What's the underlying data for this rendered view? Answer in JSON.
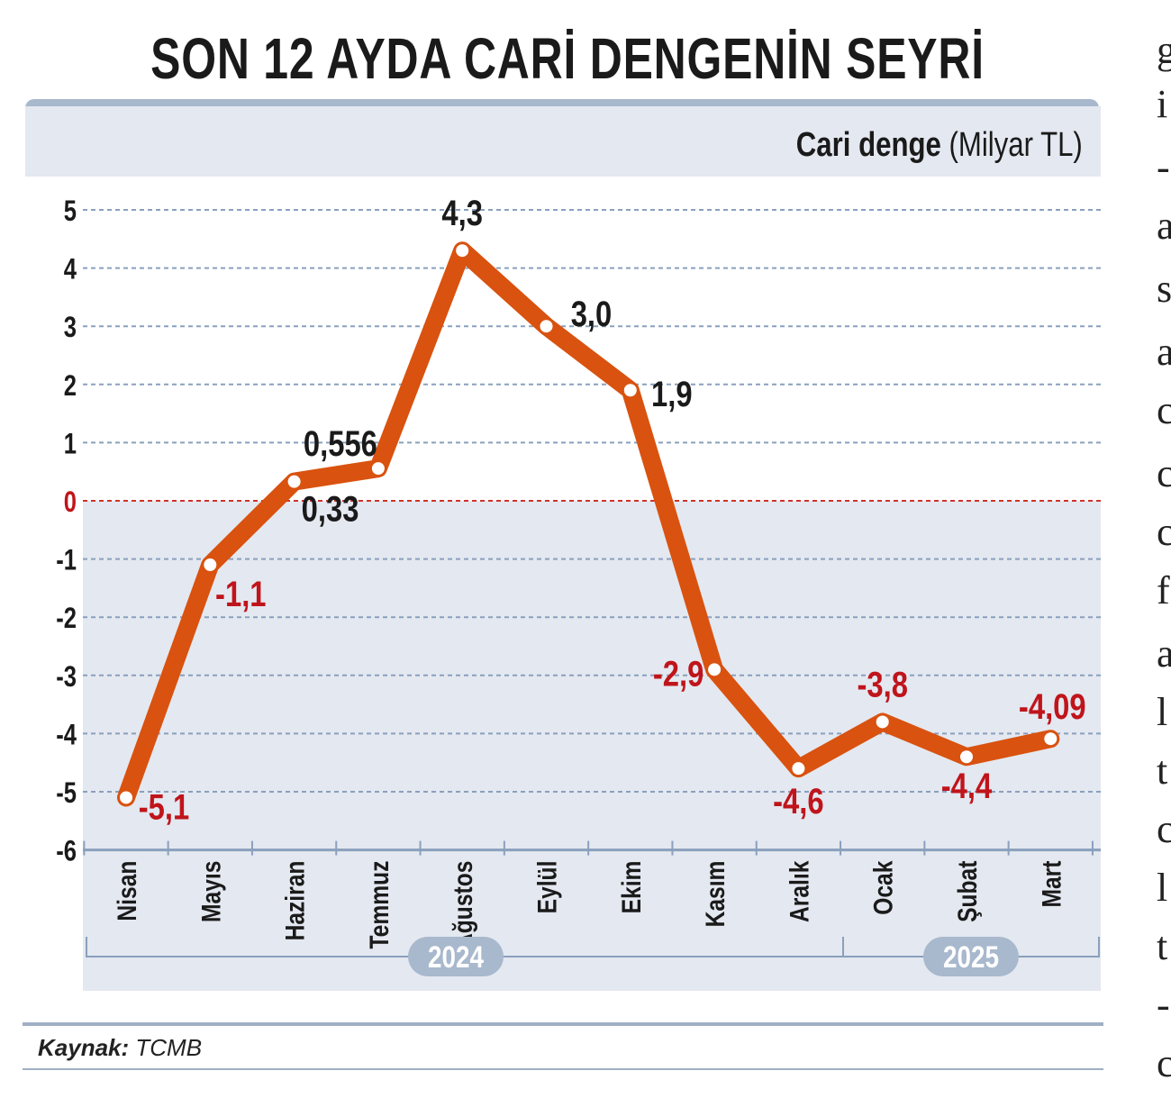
{
  "title": "SON 12 AYDA CARİ DENGENİN SEYRİ",
  "subtitle_bold": "Cari denge",
  "subtitle_unit": "(Milyar TL)",
  "source_label": "Kaynak:",
  "source_value": "TCMB",
  "side_chars": [
    "g",
    "i",
    "-",
    "a",
    "s",
    "a",
    "c",
    "c",
    "c",
    "f",
    "a",
    "l",
    "t",
    "c",
    "l",
    "t",
    "-",
    "c"
  ],
  "colors": {
    "line": "#d9520f",
    "positive_label": "#1a1a1a",
    "negative_label": "#c0141b",
    "zero_line": "#d0332a",
    "grid": "#8aa0bd",
    "negative_bg": "#e4e8f0"
  },
  "chart_data": {
    "type": "line",
    "x": [
      "Nisan",
      "Mayıs",
      "Haziran",
      "Temmuz",
      "Ağustos",
      "Eylül",
      "Ekim",
      "Kasım",
      "Aralık",
      "Ocak",
      "Şubat",
      "Mart"
    ],
    "series": [
      {
        "values": [
          -5.1,
          -1.1,
          0.33,
          0.556,
          4.3,
          3.0,
          1.9,
          -2.9,
          -4.6,
          -3.8,
          -4.4,
          -4.09
        ]
      }
    ],
    "data_labels": [
      "-5,1",
      "-1,1",
      "0,33",
      "0,556",
      "4,3",
      "3,0",
      "1,9",
      "-2,9",
      "-4,6",
      "-3,8",
      "-4,4",
      "-4,09"
    ],
    "y_ticks": [
      5,
      4,
      3,
      2,
      1,
      0,
      -1,
      -2,
      -3,
      -4,
      -5,
      -6
    ],
    "ylim": [
      -6,
      5
    ],
    "grid": true,
    "year_groups": [
      {
        "label": "2024",
        "from": 0,
        "to": 8
      },
      {
        "label": "2025",
        "from": 9,
        "to": 11
      }
    ]
  }
}
